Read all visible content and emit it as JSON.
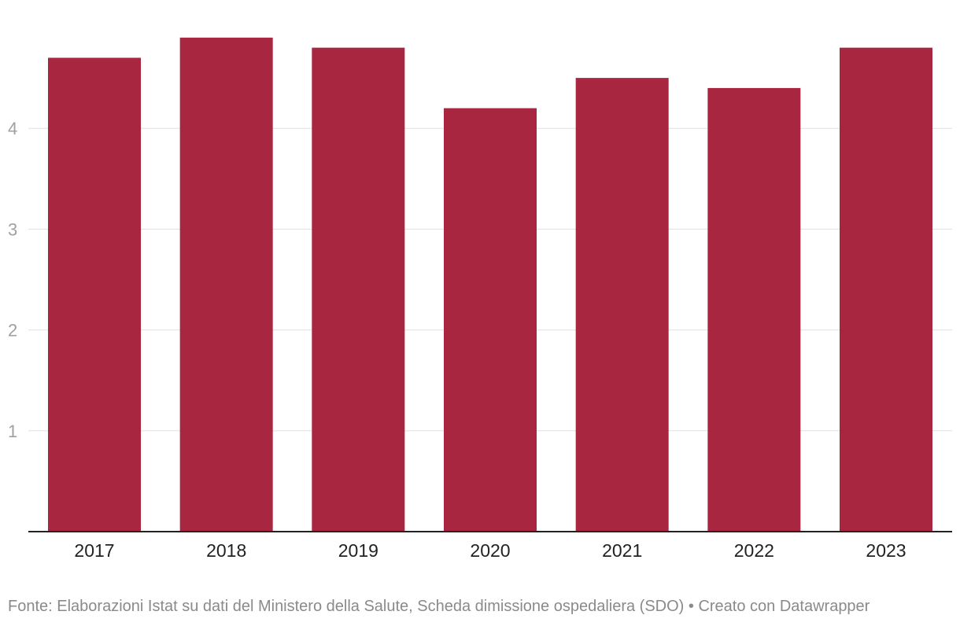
{
  "chart_data": {
    "type": "bar",
    "categories": [
      "2017",
      "2018",
      "2019",
      "2020",
      "2021",
      "2022",
      "2023"
    ],
    "values": [
      4.7,
      4.9,
      4.8,
      4.2,
      4.5,
      4.4,
      4.8
    ],
    "yticks": [
      "1",
      "2",
      "3",
      "4"
    ],
    "ylim": [
      0,
      5.1
    ],
    "grid": true,
    "bar_color": "#a92640",
    "title": "",
    "xlabel": "",
    "ylabel": ""
  },
  "footer": {
    "source": "Fonte: Elaborazioni Istat su dati del Ministero della Salute, Scheda dimissione ospedaliera (SDO) • Creato con Datawrapper"
  }
}
